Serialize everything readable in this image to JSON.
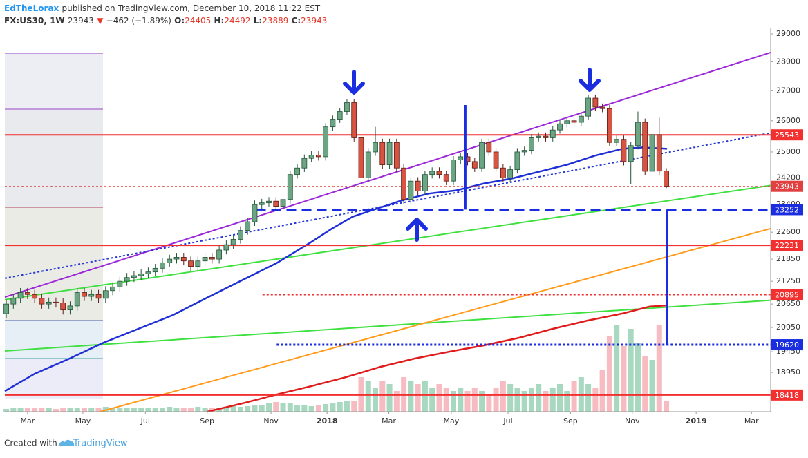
{
  "header": {
    "author": "EdTheLorax",
    "published": "published on TradingView.com, December 10, 2018 11:22 EST",
    "symbol": "FX:US30, 1W",
    "price": "23943",
    "arrow": "▼",
    "change": "−462 (−1.89%)",
    "o_label": "O:",
    "o": "24405",
    "h_label": "H:",
    "h": "24492",
    "l_label": "L:",
    "l": "23889",
    "c_label": "C:",
    "c": "23943"
  },
  "footer": {
    "text": "Created with",
    "brand": "TradingView"
  },
  "chart_data": {
    "type": "candlestick",
    "log_scale": true,
    "ylim": [
      18036,
      29228
    ],
    "yticks": [
      29000,
      28000,
      27000,
      26000,
      25000,
      24200,
      23400,
      22600,
      21850,
      21250,
      20650,
      20050,
      19450,
      18950
    ],
    "xlim": [
      -0.2,
      107.7
    ],
    "xticks": [
      {
        "value": 3.0,
        "label": "Mar"
      },
      {
        "value": 10.8,
        "label": "May"
      },
      {
        "value": 19.6,
        "label": "Jul"
      },
      {
        "value": 28.3,
        "label": "Sep"
      },
      {
        "value": 37.3,
        "label": "Nov"
      },
      {
        "value": 45.2,
        "label": "2018"
      },
      {
        "value": 53.9,
        "label": "Mar"
      },
      {
        "value": 62.7,
        "label": "May"
      },
      {
        "value": 70.7,
        "label": "Jul"
      },
      {
        "value": 79.5,
        "label": "Sep"
      },
      {
        "value": 88.2,
        "label": "Nov"
      },
      {
        "value": 97.2,
        "label": "2019"
      },
      {
        "value": 105.0,
        "label": "Mar"
      }
    ],
    "grid": false,
    "candles": {
      "up_color": "#6ba583",
      "down_color": "#d75442",
      "up_border": "#225437",
      "down_border": "#5b1a13",
      "open": [
        20400,
        20650,
        20800,
        20950,
        20900,
        20800,
        20650,
        20700,
        20680,
        20500,
        20600,
        20950,
        20850,
        20900,
        20800,
        21000,
        21100,
        21250,
        21350,
        21400,
        21450,
        21500,
        21600,
        21750,
        21850,
        21900,
        21800,
        21650,
        21800,
        21900,
        21850,
        22100,
        22250,
        22400,
        22650,
        22900,
        23400,
        23450,
        23500,
        23350,
        23550,
        24300,
        24500,
        24800,
        24900,
        24850,
        25800,
        26050,
        26300,
        26600,
        25450,
        24200,
        25000,
        25300,
        24600,
        25300,
        24500,
        23550,
        24100,
        23800,
        24300,
        24400,
        24300,
        24100,
        24750,
        24850,
        24700,
        24500,
        25300,
        25000,
        24500,
        24200,
        24450,
        25000,
        25050,
        25450,
        25500,
        25450,
        25700,
        25900,
        26000,
        25950,
        26150,
        26750,
        26450,
        26400,
        25300,
        25400,
        24700,
        25200,
        25950,
        24400,
        25550,
        24405
      ],
      "high": [
        20770,
        20920,
        21070,
        21070,
        21020,
        20920,
        20820,
        20820,
        20800,
        20720,
        21070,
        21070,
        21020,
        21020,
        21120,
        21220,
        21370,
        21470,
        21520,
        21570,
        21620,
        21720,
        21870,
        21970,
        22020,
        22020,
        21920,
        21920,
        22020,
        22020,
        22220,
        22370,
        22520,
        22770,
        23020,
        23520,
        23570,
        23620,
        23620,
        23670,
        24420,
        24620,
        24920,
        25020,
        25020,
        25920,
        26170,
        26420,
        26720,
        26720,
        25570,
        25120,
        25800,
        25420,
        25420,
        25420,
        24620,
        24220,
        24220,
        24420,
        24520,
        24520,
        24420,
        24870,
        24970,
        24970,
        24820,
        25420,
        25420,
        25120,
        24620,
        24570,
        25120,
        25170,
        25570,
        25620,
        25620,
        25820,
        26020,
        26120,
        26120,
        26270,
        26870,
        26870,
        26570,
        26520,
        25520,
        25520,
        25320,
        26300,
        26070,
        25670,
        26100,
        24492
      ],
      "low": [
        20280,
        20530,
        20680,
        20780,
        20680,
        20530,
        20530,
        20560,
        20380,
        20380,
        20480,
        20730,
        20730,
        20680,
        20680,
        20880,
        20980,
        21130,
        21230,
        21280,
        21330,
        21380,
        21480,
        21630,
        21730,
        21680,
        21530,
        21530,
        21680,
        21730,
        21730,
        21980,
        22130,
        22280,
        22530,
        22780,
        23280,
        23330,
        23230,
        23230,
        23430,
        24180,
        24380,
        24680,
        24730,
        24730,
        25680,
        25930,
        26180,
        25330,
        23300,
        24080,
        24880,
        24480,
        24480,
        24380,
        23430,
        23430,
        23680,
        23680,
        24180,
        24180,
        23980,
        23980,
        24630,
        24580,
        24380,
        24380,
        24880,
        24380,
        24080,
        24080,
        24330,
        24880,
        24930,
        25330,
        25330,
        25330,
        25580,
        25780,
        25830,
        25830,
        26030,
        26330,
        26280,
        25180,
        25180,
        24580,
        24000,
        25080,
        24280,
        24280,
        24280,
        23889
      ],
      "close": [
        20650,
        20800,
        20950,
        20900,
        20800,
        20650,
        20700,
        20680,
        20500,
        20600,
        20950,
        20850,
        20900,
        20800,
        21000,
        21100,
        21250,
        21350,
        21400,
        21450,
        21500,
        21600,
        21750,
        21850,
        21900,
        21800,
        21650,
        21800,
        21900,
        21850,
        22100,
        22250,
        22400,
        22650,
        22900,
        23400,
        23450,
        23500,
        23350,
        23550,
        24300,
        24500,
        24800,
        24900,
        24850,
        25800,
        26050,
        26300,
        26600,
        25450,
        24200,
        25000,
        25300,
        24600,
        25300,
        24500,
        23550,
        24100,
        23800,
        24300,
        24400,
        24300,
        24100,
        24750,
        24850,
        24700,
        24500,
        25300,
        25000,
        24500,
        24200,
        24450,
        25000,
        25050,
        25450,
        25500,
        25450,
        25700,
        25900,
        26000,
        25950,
        26150,
        26750,
        26450,
        26400,
        25300,
        25400,
        24700,
        25200,
        25950,
        24400,
        25550,
        24405,
        23943
      ]
    },
    "volume": {
      "up_color": "#a8d8bf",
      "down_color": "#f6bcc2",
      "values": [
        4,
        5,
        5,
        6,
        5,
        6,
        5,
        4,
        6,
        5,
        6,
        5,
        5,
        6,
        7,
        6,
        5,
        5,
        6,
        5,
        6,
        5,
        6,
        7,
        6,
        5,
        6,
        7,
        6,
        5,
        6,
        7,
        8,
        7,
        8,
        9,
        10,
        12,
        14,
        12,
        12,
        10,
        9,
        8,
        10,
        11,
        12,
        14,
        16,
        15,
        50,
        45,
        35,
        45,
        40,
        30,
        50,
        45,
        40,
        45,
        35,
        40,
        35,
        30,
        35,
        30,
        35,
        30,
        25,
        35,
        45,
        40,
        35,
        30,
        35,
        40,
        30,
        35,
        40,
        30,
        45,
        50,
        40,
        35,
        60,
        110,
        125,
        95,
        120,
        100,
        80,
        75,
        125,
        15
      ]
    },
    "moving_averages": [
      {
        "color": "#1f2fd6",
        "width": 2.5,
        "points": [
          [
            -0.2,
            18508
          ],
          [
            4.0,
            18917
          ],
          [
            8.9,
            19282
          ],
          [
            13.7,
            19671
          ],
          [
            18.6,
            20016
          ],
          [
            23.5,
            20367
          ],
          [
            28.3,
            20816
          ],
          [
            33.2,
            21274
          ],
          [
            38.1,
            21741
          ],
          [
            42.9,
            22316
          ],
          [
            45.9,
            22707
          ],
          [
            48.8,
            23046
          ],
          [
            52.7,
            23313
          ],
          [
            55.6,
            23513
          ],
          [
            59.5,
            23724
          ],
          [
            63.4,
            23821
          ],
          [
            67.3,
            24029
          ],
          [
            71.2,
            24177
          ],
          [
            75.1,
            24390
          ],
          [
            79.0,
            24601
          ],
          [
            82.9,
            24882
          ],
          [
            86.8,
            25099
          ],
          [
            89.7,
            25143
          ],
          [
            93.1,
            25099
          ]
        ]
      },
      {
        "color": "#e01b1b",
        "width": 2.5,
        "points": [
          [
            28.3,
            18036
          ],
          [
            33.2,
            18221
          ],
          [
            38.1,
            18430
          ],
          [
            42.9,
            18621
          ],
          [
            47.8,
            18833
          ],
          [
            52.7,
            19082
          ],
          [
            57.5,
            19282
          ],
          [
            62.4,
            19450
          ],
          [
            67.3,
            19604
          ],
          [
            72.2,
            19790
          ],
          [
            77.0,
            20016
          ],
          [
            81.9,
            20227
          ],
          [
            86.8,
            20404
          ],
          [
            90.6,
            20582
          ],
          [
            93.1,
            20617
          ]
        ]
      }
    ],
    "trendlines": [
      {
        "color": "#9b27d8",
        "dash": "solid",
        "points": [
          [
            -0.2,
            20830
          ],
          [
            107.7,
            28330
          ]
        ]
      },
      {
        "color": "#2437d6",
        "dash": "dotted",
        "points": [
          [
            -0.2,
            21330
          ],
          [
            107.7,
            25607
          ]
        ]
      },
      {
        "color": "#3fe03f",
        "dash": "solid",
        "points": [
          [
            -0.2,
            20765
          ],
          [
            107.7,
            23970
          ]
        ]
      },
      {
        "color": "#3fe03f",
        "dash": "solid",
        "points": [
          [
            -0.2,
            19468
          ],
          [
            107.7,
            20750
          ]
        ]
      },
      {
        "color": "#ff9a1a",
        "dash": "solid",
        "points": [
          [
            13.2,
            18036
          ],
          [
            107.7,
            22706
          ]
        ]
      }
    ],
    "vlines": [
      {
        "color": "#1a2ee0",
        "points": [
          [
            64.7,
            26520
          ],
          [
            64.7,
            23252
          ]
        ]
      },
      {
        "color": "#1a2ee0",
        "points": [
          [
            93.1,
            23252
          ],
          [
            93.1,
            19620
          ]
        ]
      }
    ],
    "levels": [
      {
        "value": 25543,
        "color": "#f23030",
        "dash": "solid",
        "width": 2,
        "from": -0.2
      },
      {
        "value": 23252,
        "color": "#1a2ee0",
        "dash": "dashed",
        "width": 3,
        "from": 35.2
      },
      {
        "value": 22231,
        "color": "#f23030",
        "dash": "solid",
        "width": 2,
        "from": -0.2
      },
      {
        "value": 20895,
        "color": "#f23030",
        "dash": "dotted",
        "width": 2,
        "from": 36.1
      },
      {
        "value": 19620,
        "color": "#1a2ee0",
        "dash": "dotted",
        "width": 3,
        "from": 38.1
      },
      {
        "value": 18418,
        "color": "#f23030",
        "dash": "solid",
        "width": 2,
        "from": -0.2
      },
      {
        "value": 23943,
        "color": "#e04040",
        "dash": "dotted",
        "width": 1,
        "from": -0.2
      }
    ]
  }
}
